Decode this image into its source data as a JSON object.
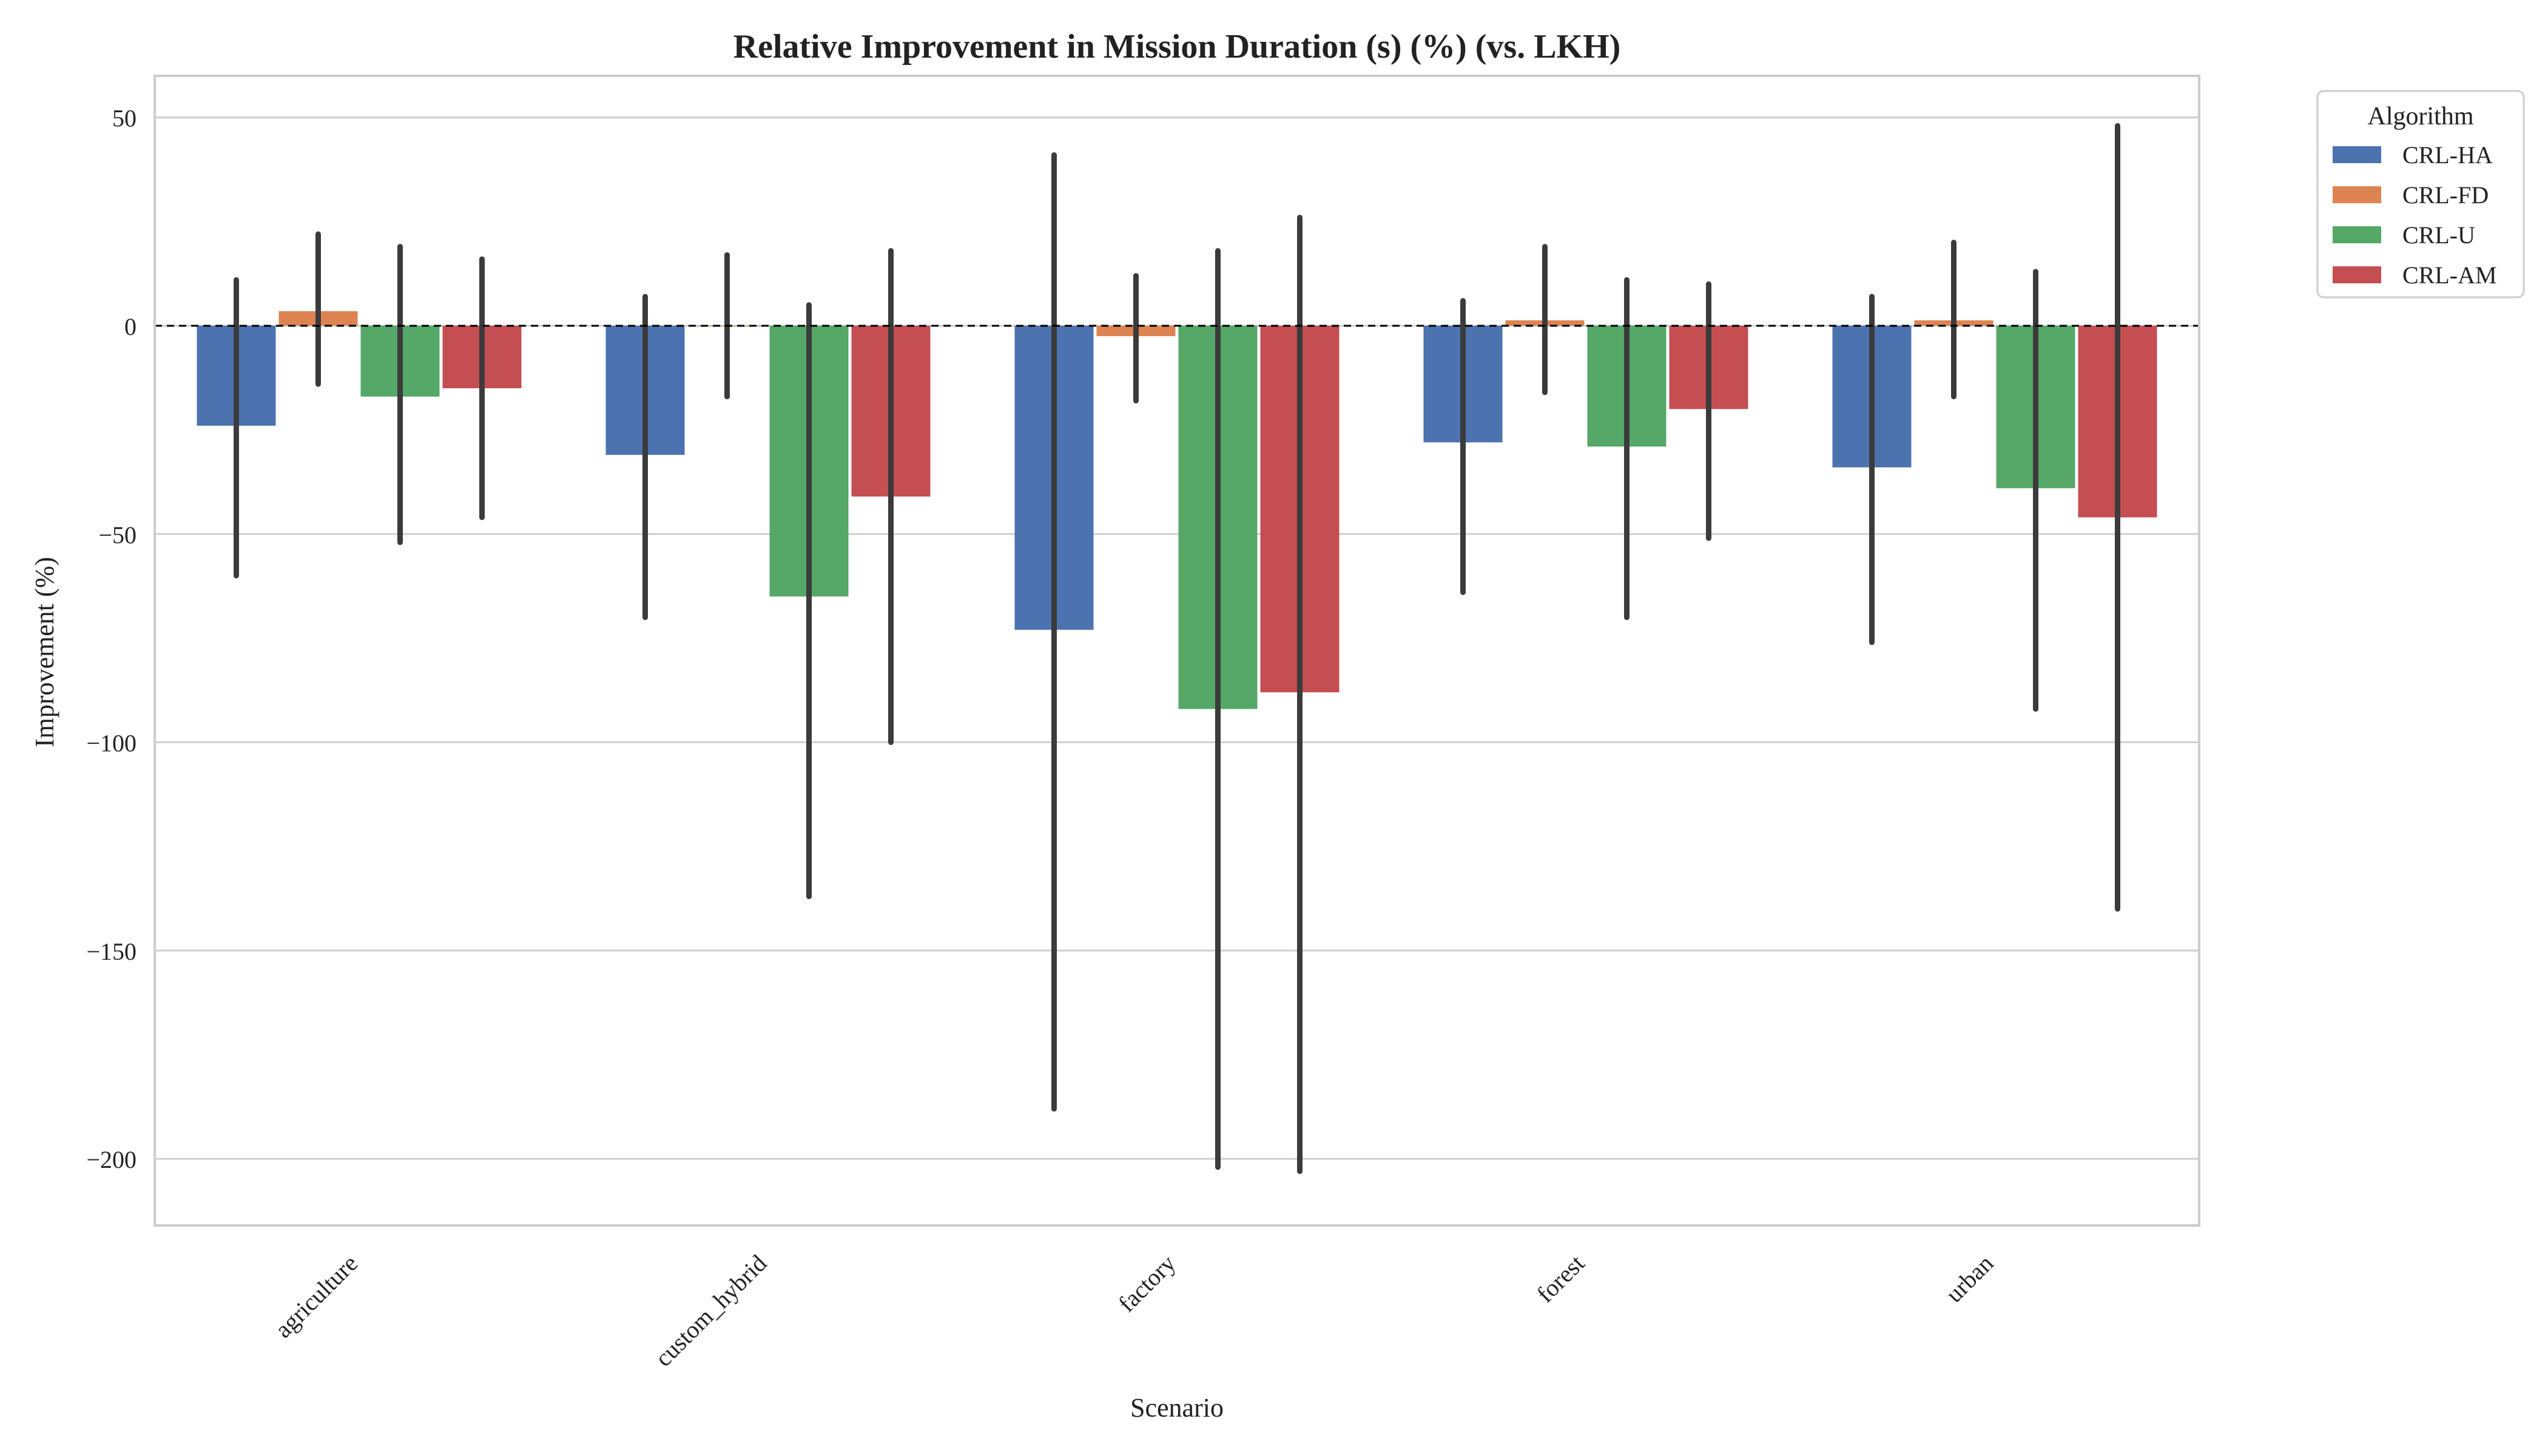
{
  "chart_data": {
    "type": "bar",
    "title": "Relative Improvement in Mission Duration (s) (%) (vs. LKH)",
    "xlabel": "Scenario",
    "ylabel": "Improvement (%)",
    "categories": [
      "agriculture",
      "custom_hybrid",
      "factory",
      "forest",
      "urban"
    ],
    "ylim": [
      -216,
      60
    ],
    "yticks": [
      50,
      0,
      -50,
      -100,
      -150,
      -200
    ],
    "ytick_labels": [
      "50",
      "0",
      "−50",
      "−100",
      "−150",
      "−200"
    ],
    "grid": true,
    "reference_line": 0,
    "legend": {
      "title": "Algorithm",
      "placement": "top-right, outside plot"
    },
    "series": [
      {
        "name": "CRL-HA",
        "color": "#4C72B0",
        "values": [
          -24,
          -31,
          -73,
          -28,
          -34
        ],
        "error_low": [
          -60,
          -70,
          -188,
          -64,
          -76
        ],
        "error_high": [
          11,
          7,
          41,
          6,
          7
        ]
      },
      {
        "name": "CRL-FD",
        "color": "#DD8452",
        "values": [
          3.5,
          0,
          -2.5,
          1.3,
          1.3
        ],
        "error_low": [
          -14,
          -17,
          -18,
          -16,
          -17
        ],
        "error_high": [
          22,
          17,
          12,
          19,
          20
        ]
      },
      {
        "name": "CRL-U",
        "color": "#55A868",
        "values": [
          -17,
          -65,
          -92,
          -29,
          -39
        ],
        "error_low": [
          -52,
          -137,
          -202,
          -70,
          -92
        ],
        "error_high": [
          19,
          5,
          18,
          11,
          13
        ]
      },
      {
        "name": "CRL-AM",
        "color": "#C44E52",
        "values": [
          -15,
          -41,
          -88,
          -20,
          -46
        ],
        "error_low": [
          -46,
          -100,
          -203,
          -51,
          -140
        ],
        "error_high": [
          16,
          18,
          26,
          10,
          48
        ]
      }
    ]
  }
}
